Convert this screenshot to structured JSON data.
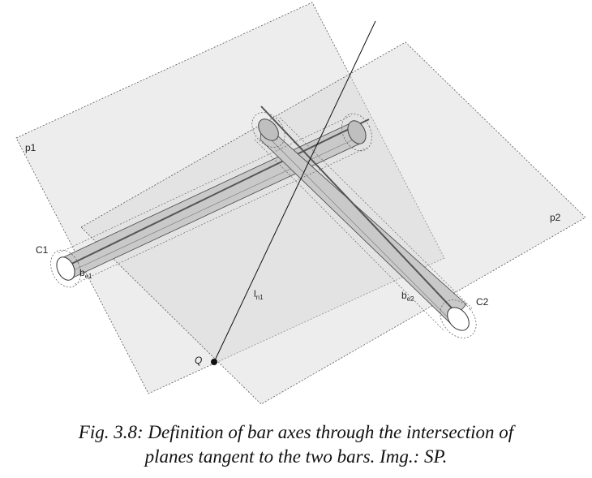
{
  "diagram": {
    "labels": {
      "p1": "p1",
      "p2": "p2",
      "c1": "C1",
      "c2": "C2",
      "b_e1_base": "b",
      "b_e1_sub": "e1",
      "b_e2_base": "b",
      "b_e2_sub": "e2",
      "l_n1_base": "l",
      "l_n1_sub": "n1",
      "q": "Q"
    }
  },
  "caption": {
    "line1": "Fig. 3.8: Definition of bar axes through the intersection of",
    "line2": "planes tangent to the two bars. Img.: SP."
  }
}
